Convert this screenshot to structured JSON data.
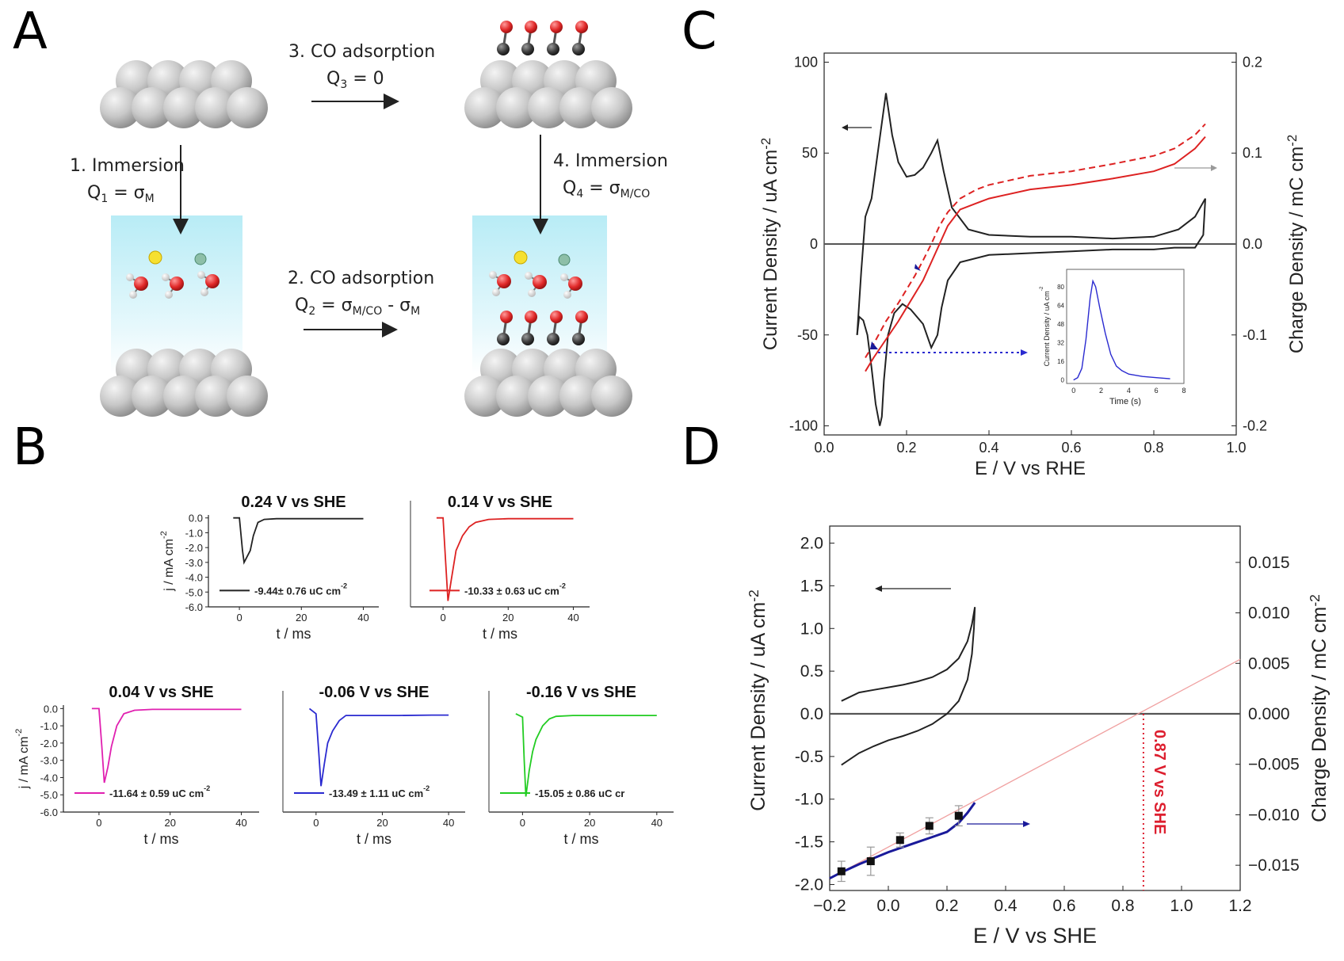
{
  "panels": {
    "a": "A",
    "b": "B",
    "c": "C",
    "d": "D"
  },
  "panel_a": {
    "step1_title": "1. Immersion",
    "step1_q": "Q",
    "step1_q_sub": "1",
    "step1_eq": " = σ",
    "step1_eq_sub": "M",
    "step2_title": "2. CO adsorption",
    "step2_q": "Q",
    "step2_q_sub": "2",
    "step2_eq": " = σ",
    "step2_eq_sub": "M/CO",
    "step2_eq_mid": " - σ",
    "step2_eq_sub2": "M",
    "step3_title": "3. CO adsorption",
    "step3_q": "Q",
    "step3_q_sub": "3",
    "step3_eq": " = 0",
    "step4_title": "4. Immersion",
    "step4_q": "Q",
    "step4_q_sub": "4",
    "step4_eq": " = σ",
    "step4_eq_sub": "M/CO"
  },
  "colors": {
    "black": "#222222",
    "red": "#dd2222",
    "magenta": "#e020b0",
    "blue": "#2a2ad0",
    "green": "#22cc22",
    "navy": "#1a1a9a",
    "pink": "#f0a0a0",
    "redlabel": "#dd1f2f"
  },
  "chart_data": [
    {
      "type": "line",
      "panel": "B",
      "title": "0.24 V vs SHE",
      "ylabel": "j / mA cm",
      "ylabel_sup": "-2",
      "xlabel": "t / ms",
      "xlim": [
        -10,
        45
      ],
      "ylim": [
        -6,
        0.2
      ],
      "xticks": [
        "0",
        "20",
        "40"
      ],
      "yticks": [
        "0.0",
        "-1.0",
        "-2.0",
        "-3.0",
        "-4.0",
        "-5.0",
        "-6.0"
      ],
      "legend": "-9.44± 0.76 uC cm",
      "legend_sup": "-2",
      "series": [
        {
          "color": "#222222",
          "x": [
            -2,
            0,
            1,
            1.5,
            2.5,
            3.5,
            4.5,
            6,
            8,
            12,
            20,
            30,
            40
          ],
          "y": [
            0,
            0,
            -2.2,
            -3.0,
            -2.6,
            -2.2,
            -1.2,
            -0.3,
            -0.1,
            -0.05,
            -0.05,
            -0.05,
            -0.05
          ]
        }
      ]
    },
    {
      "type": "line",
      "panel": "B",
      "title": "0.14 V vs SHE",
      "xlabel": "t / ms",
      "xlim": [
        -10,
        45
      ],
      "ylim": [
        -6,
        0.2
      ],
      "xticks": [
        "0",
        "20",
        "40"
      ],
      "legend": "-10.33 ± 0.63 uC cm",
      "legend_sup": "-2",
      "series": [
        {
          "color": "#dd2222",
          "x": [
            -2,
            0,
            0.8,
            1.5,
            2.5,
            4,
            6,
            8,
            10,
            14,
            20,
            30,
            40
          ],
          "y": [
            0,
            0,
            -3.0,
            -5.6,
            -4.2,
            -2.2,
            -1.2,
            -0.6,
            -0.3,
            -0.1,
            -0.05,
            -0.05,
            -0.05
          ]
        }
      ]
    },
    {
      "type": "line",
      "panel": "B",
      "title": "0.04 V vs SHE",
      "ylabel": "j / mA cm",
      "ylabel_sup": "-2",
      "xlabel": "t / ms",
      "xlim": [
        -10,
        45
      ],
      "ylim": [
        -6,
        0.2
      ],
      "xticks": [
        "0",
        "20",
        "40"
      ],
      "yticks": [
        "0.0",
        "-1.0",
        "-2.0",
        "-3.0",
        "-4.0",
        "-5.0",
        "-6.0"
      ],
      "legend": "-11.64 ± 0.59 uC cm",
      "legend_sup": "-2",
      "series": [
        {
          "color": "#e020b0",
          "x": [
            -2,
            0,
            0.8,
            1.5,
            2.5,
            3.5,
            5,
            7,
            10,
            15,
            20,
            30,
            40
          ],
          "y": [
            0,
            0,
            -2.2,
            -4.3,
            -3.4,
            -2.2,
            -1.0,
            -0.3,
            -0.1,
            -0.05,
            -0.05,
            -0.05,
            -0.05
          ]
        }
      ]
    },
    {
      "type": "line",
      "panel": "B",
      "title": "-0.06 V vs SHE",
      "xlabel": "t / ms",
      "xlim": [
        -10,
        45
      ],
      "ylim": [
        -6,
        0.2
      ],
      "xticks": [
        "0",
        "20",
        "40"
      ],
      "legend": "-13.49 ± 1.11 uC cm",
      "legend_sup": "-2",
      "series": [
        {
          "color": "#2a2ad0",
          "x": [
            -2,
            0,
            0.8,
            1.5,
            2.5,
            3.5,
            5,
            7,
            9,
            15,
            25,
            35,
            40
          ],
          "y": [
            0,
            -0.3,
            -2.5,
            -4.5,
            -3.2,
            -2.0,
            -1.3,
            -0.7,
            -0.4,
            -0.4,
            -0.4,
            -0.38,
            -0.38
          ]
        }
      ]
    },
    {
      "type": "line",
      "panel": "B",
      "title": "-0.16 V vs SHE",
      "xlabel": "t / ms",
      "xlim": [
        -10,
        45
      ],
      "ylim": [
        -6,
        0.2
      ],
      "xticks": [
        "0",
        "20",
        "40"
      ],
      "legend": "-15.05 ± 0.86 uC cr",
      "series": [
        {
          "color": "#22cc22",
          "x": [
            -2,
            0,
            0.5,
            1,
            2,
            3,
            4,
            6,
            8,
            10,
            15,
            25,
            40
          ],
          "y": [
            -0.3,
            -0.5,
            -3.0,
            -5.1,
            -3.6,
            -2.5,
            -1.8,
            -1.0,
            -0.6,
            -0.45,
            -0.4,
            -0.4,
            -0.4
          ]
        }
      ]
    },
    {
      "type": "line",
      "panel": "C",
      "xlabel": "E / V vs RHE",
      "ylabel": "Current Density / uA cm",
      "ylabel_sup": "-2",
      "y2label": "Charge Density / mC cm",
      "y2label_sup": "-2",
      "xlim": [
        0.0,
        1.0
      ],
      "ylim": [
        -105,
        105
      ],
      "y2lim": [
        -0.21,
        0.21
      ],
      "xticks": [
        "0.0",
        "0.2",
        "0.4",
        "0.6",
        "0.8",
        "1.0"
      ],
      "yticks": [
        "100",
        "50",
        "0",
        "-50",
        "-100"
      ],
      "y2ticks": [
        "0.2",
        "0.1",
        "0.0",
        "-0.1",
        "-0.2"
      ],
      "series": [
        {
          "name": "CV anodic",
          "color": "#222222",
          "x": [
            0.08,
            0.09,
            0.1,
            0.115,
            0.13,
            0.15,
            0.165,
            0.18,
            0.2,
            0.22,
            0.24,
            0.26,
            0.275,
            0.29,
            0.31,
            0.35,
            0.4,
            0.5,
            0.6,
            0.7,
            0.8,
            0.86,
            0.9,
            0.925
          ],
          "y": [
            -50,
            -15,
            15,
            25,
            50,
            83,
            60,
            45,
            37,
            38,
            42,
            50,
            57,
            40,
            20,
            8,
            5,
            4,
            4,
            3,
            4,
            8,
            15,
            25
          ]
        },
        {
          "name": "CV cathodic",
          "color": "#222222",
          "x": [
            0.925,
            0.92,
            0.9,
            0.85,
            0.8,
            0.7,
            0.6,
            0.5,
            0.4,
            0.33,
            0.3,
            0.285,
            0.275,
            0.26,
            0.24,
            0.21,
            0.19,
            0.17,
            0.155,
            0.145,
            0.14,
            0.135,
            0.125,
            0.115,
            0.105,
            0.095,
            0.085,
            0.08
          ],
          "y": [
            25,
            5,
            -2,
            -2,
            -3,
            -3,
            -4,
            -5,
            -6,
            -10,
            -20,
            -35,
            -50,
            -57,
            -44,
            -36,
            -33,
            -38,
            -50,
            -75,
            -95,
            -100,
            -88,
            -68,
            -50,
            -42,
            -40,
            -50
          ]
        },
        {
          "name": "charge",
          "color": "#dd2222",
          "axis": "y2",
          "x": [
            0.1,
            0.12,
            0.15,
            0.18,
            0.2,
            0.22,
            0.24,
            0.26,
            0.28,
            0.3,
            0.33,
            0.37,
            0.4,
            0.5,
            0.6,
            0.7,
            0.8,
            0.85,
            0.9,
            0.925
          ],
          "y": [
            -0.14,
            -0.125,
            -0.105,
            -0.085,
            -0.07,
            -0.055,
            -0.04,
            -0.02,
            0.0,
            0.02,
            0.038,
            0.045,
            0.05,
            0.06,
            0.065,
            0.072,
            0.08,
            0.088,
            0.105,
            0.118
          ]
        },
        {
          "name": "charge-dashed",
          "color": "#dd2222",
          "axis": "y2",
          "dashed": true,
          "x": [
            0.1,
            0.12,
            0.15,
            0.18,
            0.2,
            0.22,
            0.24,
            0.26,
            0.28,
            0.3,
            0.33,
            0.37,
            0.4,
            0.5,
            0.6,
            0.7,
            0.8,
            0.85,
            0.9,
            0.925
          ],
          "y": [
            -0.125,
            -0.11,
            -0.085,
            -0.065,
            -0.05,
            -0.035,
            -0.018,
            0.0,
            0.02,
            0.035,
            0.05,
            0.06,
            0.065,
            0.075,
            0.08,
            0.088,
            0.097,
            0.105,
            0.12,
            0.132
          ]
        }
      ]
    },
    {
      "type": "line",
      "panel": "C-inset",
      "xlabel": "Time (s)",
      "ylabel": "Current Density / uA cm",
      "ylabel_sup": "-2",
      "xlim": [
        -0.5,
        8
      ],
      "ylim": [
        -3,
        95
      ],
      "xticks": [
        "0",
        "2",
        "4",
        "6",
        "8"
      ],
      "yticks": [
        "0",
        "16",
        "32",
        "48",
        "64",
        "80"
      ],
      "series": [
        {
          "color": "#2a2ad0",
          "x": [
            0,
            0.3,
            0.6,
            0.9,
            1.2,
            1.4,
            1.6,
            1.9,
            2.3,
            2.7,
            3.1,
            3.5,
            4,
            4.5,
            5,
            6,
            7
          ],
          "y": [
            0,
            2,
            10,
            35,
            70,
            85,
            80,
            62,
            40,
            22,
            12,
            8,
            5,
            4,
            3,
            2,
            1
          ]
        }
      ]
    },
    {
      "type": "line",
      "panel": "D",
      "xlabel": "E / V vs SHE",
      "ylabel": "Current Density / uA cm",
      "ylabel_sup": "-2",
      "y2label": "Charge Density / mC cm",
      "y2label_sup": "-2",
      "annotation": "0.87 V vs SHE",
      "xlim": [
        -0.2,
        1.2
      ],
      "ylim": [
        -2.07,
        2.2
      ],
      "y2lim": [
        -0.0175,
        0.0186
      ],
      "xticks": [
        "−0.2",
        "0.0",
        "0.2",
        "0.4",
        "0.6",
        "0.8",
        "1.0",
        "1.2"
      ],
      "yticks": [
        "2.0",
        "1.5",
        "1.0",
        "0.5",
        "0.0",
        "-0.5",
        "-1.0",
        "-1.5",
        "-2.0"
      ],
      "y2ticks": [
        "0.015",
        "0.010",
        "0.005",
        "0.000",
        "−0.005",
        "−0.010",
        "−0.015"
      ],
      "series": [
        {
          "name": "CV upper",
          "color": "#222222",
          "x": [
            -0.16,
            -0.1,
            -0.05,
            0.0,
            0.05,
            0.1,
            0.15,
            0.2,
            0.24,
            0.27,
            0.285,
            0.295
          ],
          "y": [
            0.15,
            0.25,
            0.28,
            0.31,
            0.34,
            0.38,
            0.43,
            0.52,
            0.65,
            0.85,
            1.05,
            1.25
          ]
        },
        {
          "name": "CV lower",
          "color": "#222222",
          "x": [
            0.295,
            0.292,
            0.285,
            0.27,
            0.24,
            0.2,
            0.15,
            0.1,
            0.05,
            0.0,
            -0.05,
            -0.1,
            -0.16
          ],
          "y": [
            1.25,
            1.0,
            0.7,
            0.4,
            0.15,
            0.0,
            -0.12,
            -0.2,
            -0.26,
            -0.31,
            -0.38,
            -0.46,
            -0.6
          ]
        },
        {
          "name": "fit",
          "color": "#f0a0a0",
          "axis": "y2",
          "x": [
            -0.2,
            1.2
          ],
          "y": [
            -0.0163,
            0.0054
          ]
        },
        {
          "name": "charge",
          "color": "#1a1a9a",
          "axis": "y2",
          "x": [
            -0.2,
            -0.16,
            -0.1,
            -0.05,
            0.0,
            0.05,
            0.1,
            0.15,
            0.2,
            0.24,
            0.27,
            0.295
          ],
          "y": [
            -0.0163,
            -0.0157,
            -0.0149,
            -0.0143,
            -0.0137,
            -0.0132,
            -0.0127,
            -0.0122,
            -0.0117,
            -0.0108,
            -0.0098,
            -0.0088
          ]
        },
        {
          "name": "points",
          "color": "#111111",
          "axis": "y2",
          "markers": true,
          "x": [
            -0.16,
            -0.06,
            0.04,
            0.14,
            0.24
          ],
          "y": [
            -0.0156,
            -0.0146,
            -0.0125,
            -0.0111,
            -0.0101
          ],
          "err": [
            0.001,
            0.0014,
            0.0007,
            0.0008,
            0.001
          ]
        }
      ]
    }
  ]
}
